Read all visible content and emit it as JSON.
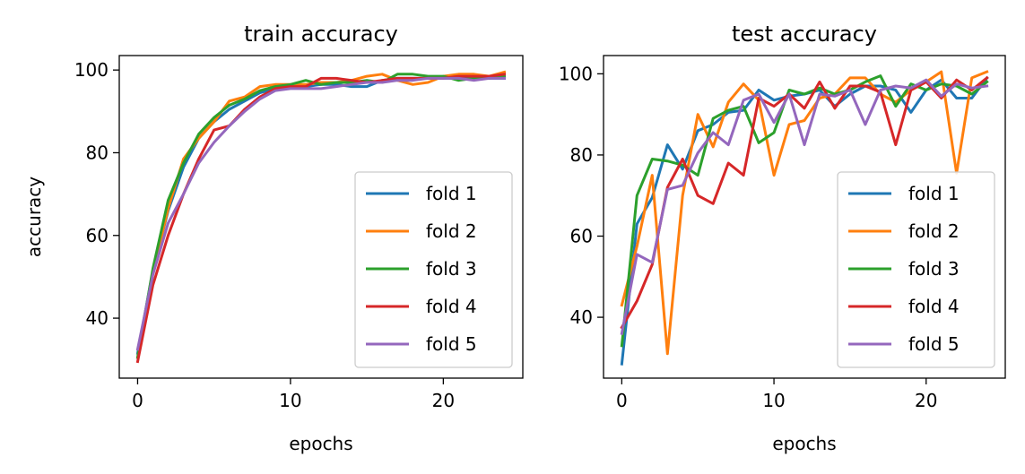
{
  "chart_data": [
    {
      "type": "line",
      "title": "train accuracy",
      "xlabel": "epochs",
      "ylabel": "accuracy",
      "xlim": [
        -1.2,
        25.2
      ],
      "ylim": [
        25.5,
        103.5
      ],
      "xticks": [
        0,
        10,
        20
      ],
      "yticks": [
        40,
        60,
        80,
        100
      ],
      "grid": false,
      "legend": "lower-right",
      "x": [
        0,
        1,
        2,
        3,
        4,
        5,
        6,
        7,
        8,
        9,
        10,
        11,
        12,
        13,
        14,
        15,
        16,
        17,
        18,
        19,
        20,
        21,
        22,
        23,
        24
      ],
      "series": [
        {
          "name": "fold 1",
          "color": "#1f77b4",
          "values": [
            31.5,
            51.5,
            66,
            76.5,
            83.5,
            87.5,
            90.5,
            92.5,
            94.5,
            95.5,
            96,
            96,
            96.5,
            96.5,
            96,
            96,
            97.5,
            98,
            98,
            98,
            98,
            98,
            98,
            98,
            98
          ]
        },
        {
          "name": "fold 2",
          "color": "#ff7f0e",
          "values": [
            30.5,
            51,
            66.5,
            78.5,
            83.5,
            87.5,
            92.5,
            93.5,
            96,
            96.5,
            96.5,
            96.5,
            97,
            97,
            97.5,
            98.5,
            99,
            97.5,
            96.5,
            97,
            98.5,
            99,
            99,
            98.5,
            99.5
          ]
        },
        {
          "name": "fold 3",
          "color": "#2ca02c",
          "values": [
            30.5,
            52,
            68.5,
            77.5,
            84.5,
            88.5,
            91.5,
            93,
            95,
            96,
            96.5,
            97.5,
            96.5,
            97,
            97,
            97.5,
            97,
            99,
            99,
            98.5,
            98.5,
            97.5,
            98,
            98,
            98.5
          ]
        },
        {
          "name": "fold 4",
          "color": "#d62728",
          "values": [
            29.5,
            48,
            60,
            70,
            78.5,
            85.5,
            86.5,
            90.5,
            93.5,
            95.5,
            96,
            96,
            98,
            98,
            97.5,
            97,
            97.5,
            98,
            98,
            98,
            98,
            98.5,
            98.5,
            98.5,
            99
          ]
        },
        {
          "name": "fold 5",
          "color": "#9467bd",
          "values": [
            32.5,
            50.5,
            63,
            70,
            77.5,
            82.5,
            86.5,
            90,
            93,
            95,
            95.5,
            95.5,
            95.5,
            96,
            96.5,
            97,
            97,
            97.5,
            97.5,
            98,
            98,
            98,
            97.5,
            98,
            98
          ]
        }
      ]
    },
    {
      "type": "line",
      "title": "test accuracy",
      "xlabel": "epochs",
      "ylabel": "",
      "xlim": [
        -1.2,
        25.2
      ],
      "ylim": [
        25,
        104.5
      ],
      "xticks": [
        0,
        10,
        20
      ],
      "yticks": [
        40,
        60,
        80,
        100
      ],
      "grid": false,
      "legend": "lower-right",
      "x": [
        0,
        1,
        2,
        3,
        4,
        5,
        6,
        7,
        8,
        9,
        10,
        11,
        12,
        13,
        14,
        15,
        16,
        17,
        18,
        19,
        20,
        21,
        22,
        23,
        24
      ],
      "series": [
        {
          "name": "fold 1",
          "color": "#1f77b4",
          "values": [
            28.5,
            63,
            69.5,
            82.5,
            76.5,
            86,
            87.5,
            90.5,
            91,
            96,
            93.5,
            94.5,
            95,
            96,
            92,
            95,
            97,
            97,
            96,
            90.5,
            96,
            98.5,
            94,
            94,
            99
          ]
        },
        {
          "name": "fold 2",
          "color": "#ff7f0e",
          "values": [
            43,
            57.5,
            75,
            31,
            70,
            90,
            82,
            93,
            97.5,
            93.5,
            75,
            87.5,
            88.5,
            94,
            95,
            99,
            99,
            95,
            93,
            96,
            98,
            100.5,
            75.5,
            99,
            100.5
          ]
        },
        {
          "name": "fold 3",
          "color": "#2ca02c",
          "values": [
            33,
            70,
            79,
            78.5,
            77.5,
            75,
            89,
            91,
            92,
            83,
            85.5,
            96,
            95,
            96.5,
            95,
            96,
            98,
            99.5,
            92,
            97.5,
            96,
            97.5,
            97,
            95,
            98
          ]
        },
        {
          "name": "fold 4",
          "color": "#d62728",
          "values": [
            37.5,
            44,
            53,
            72,
            79,
            70,
            68,
            78,
            75,
            94,
            92,
            95,
            91.5,
            98,
            91.5,
            97,
            97,
            95.5,
            82.5,
            96,
            98,
            94,
            98.5,
            96,
            99
          ]
        },
        {
          "name": "fold 5",
          "color": "#9467bd",
          "values": [
            36,
            55.5,
            53.5,
            71.5,
            72.5,
            80.5,
            85.5,
            82.5,
            93.5,
            95,
            88,
            95,
            82.5,
            95,
            94.5,
            96,
            87.5,
            96,
            97,
            96.5,
            98.5,
            94.5,
            97.5,
            96.5,
            97
          ]
        }
      ]
    }
  ]
}
